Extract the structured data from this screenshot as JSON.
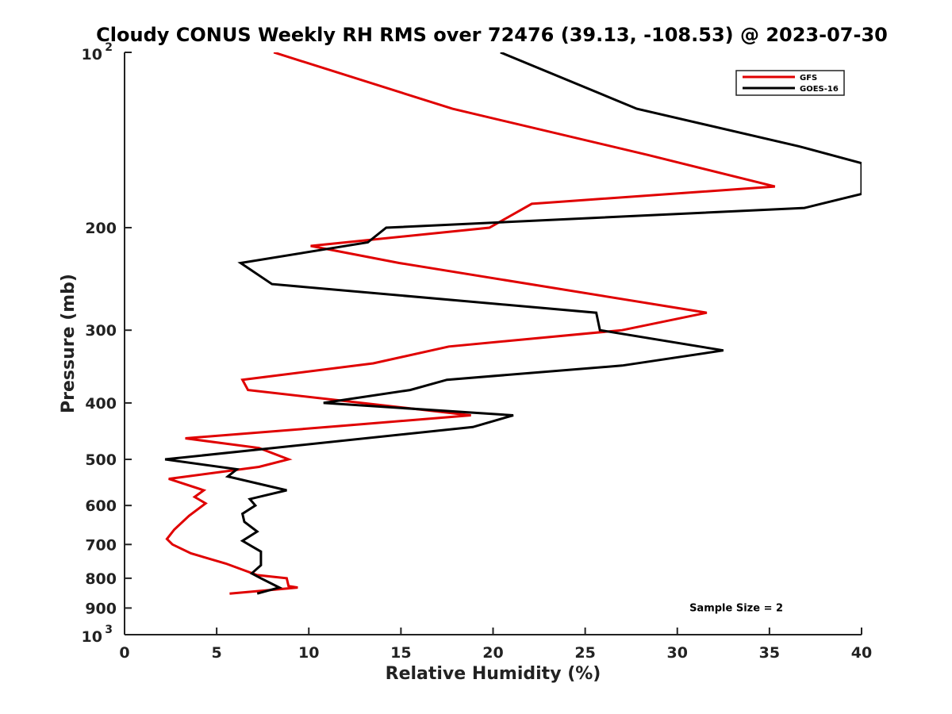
{
  "chart_data": {
    "type": "line",
    "title": "Cloudy CONUS Weekly RH RMS over 72476 (39.13, -108.53) @ 2023-07-30",
    "xlabel": "Relative Humidity (%)",
    "ylabel": "Pressure (mb)",
    "xlim": [
      0,
      40
    ],
    "ylim": [
      100,
      1000
    ],
    "y_scale": "log",
    "y_reversed": true,
    "grid": false,
    "legend_position": "top-right",
    "x_ticks": [
      0,
      5,
      10,
      15,
      20,
      25,
      30,
      35,
      40
    ],
    "x_tick_labels": [
      "0",
      "5",
      "10",
      "15",
      "20",
      "25",
      "30",
      "35",
      "40"
    ],
    "y_ticks": [
      {
        "value": 100,
        "base": "10",
        "exp": "2"
      },
      {
        "value": 200,
        "label": "200"
      },
      {
        "value": 300,
        "label": "300"
      },
      {
        "value": 400,
        "label": "400"
      },
      {
        "value": 500,
        "label": "500"
      },
      {
        "value": 600,
        "label": "600"
      },
      {
        "value": 700,
        "label": "700"
      },
      {
        "value": 800,
        "label": "800"
      },
      {
        "value": 900,
        "label": "900"
      },
      {
        "value": 1000,
        "base": "10",
        "exp": "3"
      }
    ],
    "series": [
      {
        "name": "GFS",
        "color": "#e00000",
        "points": [
          [
            8.1,
            100
          ],
          [
            17.8,
            125
          ],
          [
            28.4,
            150
          ],
          [
            35.3,
            170
          ],
          [
            22.1,
            182
          ],
          [
            19.8,
            200
          ],
          [
            10.1,
            215
          ],
          [
            14.9,
            230
          ],
          [
            31.6,
            280
          ],
          [
            27.0,
            300
          ],
          [
            17.6,
            320
          ],
          [
            13.5,
            342
          ],
          [
            6.4,
            365
          ],
          [
            6.7,
            380
          ],
          [
            18.8,
            420
          ],
          [
            11.8,
            438
          ],
          [
            3.3,
            460
          ],
          [
            7.3,
            478
          ],
          [
            8.9,
            500
          ],
          [
            7.3,
            515
          ],
          [
            2.4,
            540
          ],
          [
            4.3,
            565
          ],
          [
            3.8,
            580
          ],
          [
            4.4,
            595
          ],
          [
            3.5,
            625
          ],
          [
            2.7,
            660
          ],
          [
            2.3,
            685
          ],
          [
            2.6,
            700
          ],
          [
            3.6,
            725
          ],
          [
            5.5,
            755
          ],
          [
            7.2,
            790
          ],
          [
            8.8,
            800
          ],
          [
            8.9,
            825
          ],
          [
            9.4,
            830
          ],
          [
            5.7,
            850
          ]
        ]
      },
      {
        "name": "GOES-16",
        "color": "#000000",
        "points": [
          [
            20.4,
            100
          ],
          [
            27.8,
            125
          ],
          [
            36.6,
            145
          ],
          [
            40.0,
            155
          ],
          [
            40.0,
            175
          ],
          [
            36.9,
            185
          ],
          [
            14.2,
            200
          ],
          [
            13.2,
            212
          ],
          [
            6.3,
            230
          ],
          [
            8.0,
            250
          ],
          [
            25.6,
            280
          ],
          [
            25.8,
            300
          ],
          [
            32.5,
            325
          ],
          [
            27.0,
            345
          ],
          [
            17.5,
            365
          ],
          [
            15.5,
            380
          ],
          [
            10.8,
            400
          ],
          [
            21.1,
            420
          ],
          [
            18.9,
            440
          ],
          [
            2.2,
            500
          ],
          [
            6.1,
            520
          ],
          [
            5.6,
            535
          ],
          [
            8.8,
            565
          ],
          [
            6.8,
            585
          ],
          [
            7.1,
            600
          ],
          [
            6.4,
            620
          ],
          [
            6.5,
            640
          ],
          [
            7.2,
            665
          ],
          [
            6.4,
            690
          ],
          [
            6.9,
            705
          ],
          [
            7.4,
            720
          ],
          [
            7.4,
            760
          ],
          [
            6.9,
            785
          ],
          [
            7.4,
            800
          ],
          [
            8.4,
            830
          ],
          [
            7.2,
            850
          ]
        ]
      }
    ],
    "annotations": [
      {
        "text": "Sample Size = 2",
        "x": 33.2,
        "y": 900
      }
    ]
  }
}
